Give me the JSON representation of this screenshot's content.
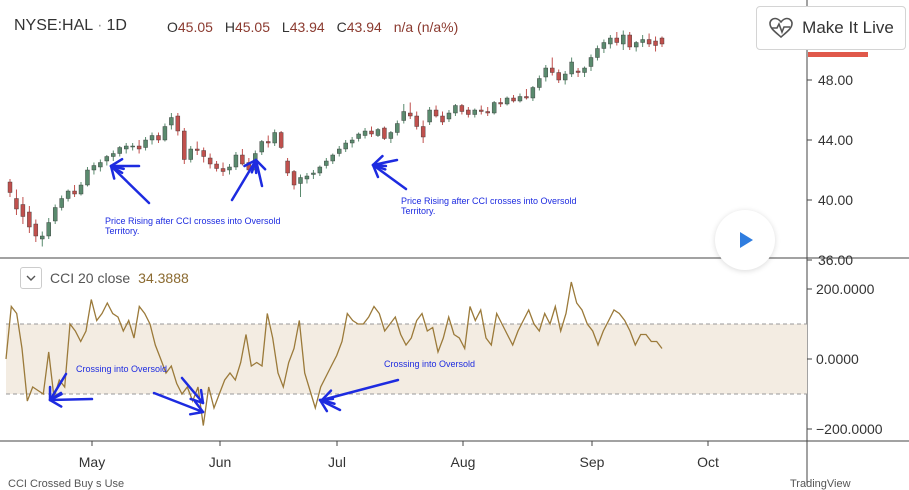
{
  "header": {
    "symbol": "NYSE:HAL",
    "interval": "1D",
    "ohlc": [
      {
        "key": "O",
        "value": "45.05"
      },
      {
        "key": "H",
        "value": "45.05"
      },
      {
        "key": "L",
        "value": "43.94"
      },
      {
        "key": "C",
        "value": "43.94"
      }
    ],
    "change": "n/a (n/a%)"
  },
  "live_button": {
    "label": "Make It Live",
    "icon": "heart-pulse-icon"
  },
  "cci_legend": {
    "label": "CCI 20 close",
    "value": "34.3888"
  },
  "annotations": [
    {
      "text": "Price Rising after CCI crosses into Oversold Territory."
    },
    {
      "text": "Price Rising after CCI crosses into Oversold Territory."
    },
    {
      "text": "Crossing into Oversold"
    },
    {
      "text": "Crossing into Oversold"
    }
  ],
  "footer": {
    "left": "CCI Crossed Buy s Use",
    "right": "TradingView"
  },
  "colors": {
    "up": "#5a8a6e",
    "down": "#c0504d",
    "cci": "#9b7a3a",
    "band": "#f3ece2",
    "arrow": "#1d2be0",
    "accent_price": "#e0584a"
  },
  "chart_data": [
    {
      "type": "candlestick",
      "title": "NYSE:HAL",
      "x_ticks": [
        "May",
        "Jun",
        "Jul",
        "Aug",
        "Sep",
        "Oct"
      ],
      "y_ticks": [
        "36.00",
        "40.00",
        "44.00",
        "48.00"
      ],
      "ylim": [
        35.4,
        52.7
      ],
      "grid": false,
      "candles": [
        {
          "o": 41.2,
          "h": 41.4,
          "l": 40.2,
          "c": 40.5
        },
        {
          "o": 40.1,
          "h": 40.7,
          "l": 39.0,
          "c": 39.4
        },
        {
          "o": 39.7,
          "h": 40.2,
          "l": 38.4,
          "c": 38.9
        },
        {
          "o": 39.2,
          "h": 39.6,
          "l": 37.8,
          "c": 38.2
        },
        {
          "o": 38.4,
          "h": 38.7,
          "l": 37.2,
          "c": 37.6
        },
        {
          "o": 37.4,
          "h": 37.9,
          "l": 36.9,
          "c": 37.6
        },
        {
          "o": 37.6,
          "h": 38.8,
          "l": 37.4,
          "c": 38.5
        },
        {
          "o": 38.6,
          "h": 39.7,
          "l": 38.4,
          "c": 39.5
        },
        {
          "o": 39.5,
          "h": 40.3,
          "l": 39.3,
          "c": 40.1
        },
        {
          "o": 40.1,
          "h": 40.7,
          "l": 39.9,
          "c": 40.6
        },
        {
          "o": 40.6,
          "h": 41.0,
          "l": 40.2,
          "c": 40.4
        },
        {
          "o": 40.4,
          "h": 41.2,
          "l": 40.3,
          "c": 41.0
        },
        {
          "o": 41.0,
          "h": 42.2,
          "l": 40.9,
          "c": 42.0
        },
        {
          "o": 42.0,
          "h": 42.5,
          "l": 41.7,
          "c": 42.3
        },
        {
          "o": 42.2,
          "h": 42.7,
          "l": 41.9,
          "c": 42.5
        },
        {
          "o": 42.6,
          "h": 43.0,
          "l": 42.3,
          "c": 42.9
        },
        {
          "o": 42.9,
          "h": 43.3,
          "l": 42.6,
          "c": 43.1
        },
        {
          "o": 43.1,
          "h": 43.6,
          "l": 42.9,
          "c": 43.5
        },
        {
          "o": 43.4,
          "h": 43.8,
          "l": 43.1,
          "c": 43.6
        },
        {
          "o": 43.6,
          "h": 43.8,
          "l": 43.3,
          "c": 43.6
        },
        {
          "o": 43.6,
          "h": 44.0,
          "l": 43.1,
          "c": 43.4
        },
        {
          "o": 43.5,
          "h": 44.2,
          "l": 43.3,
          "c": 44.0
        },
        {
          "o": 44.0,
          "h": 44.5,
          "l": 43.7,
          "c": 44.3
        },
        {
          "o": 44.3,
          "h": 44.5,
          "l": 43.8,
          "c": 44.0
        },
        {
          "o": 44.0,
          "h": 45.1,
          "l": 43.9,
          "c": 44.9
        },
        {
          "o": 45.0,
          "h": 45.8,
          "l": 44.7,
          "c": 45.5
        },
        {
          "o": 45.6,
          "h": 45.8,
          "l": 44.3,
          "c": 44.6
        },
        {
          "o": 44.6,
          "h": 44.8,
          "l": 42.4,
          "c": 42.7
        },
        {
          "o": 42.7,
          "h": 43.6,
          "l": 42.5,
          "c": 43.4
        },
        {
          "o": 43.4,
          "h": 43.9,
          "l": 43.0,
          "c": 43.3
        },
        {
          "o": 43.3,
          "h": 43.5,
          "l": 42.5,
          "c": 42.9
        },
        {
          "o": 42.8,
          "h": 43.1,
          "l": 42.1,
          "c": 42.4
        },
        {
          "o": 42.4,
          "h": 42.6,
          "l": 41.9,
          "c": 42.1
        },
        {
          "o": 42.1,
          "h": 42.5,
          "l": 41.6,
          "c": 41.9
        },
        {
          "o": 42.0,
          "h": 42.4,
          "l": 41.7,
          "c": 42.2
        },
        {
          "o": 42.2,
          "h": 43.2,
          "l": 42.0,
          "c": 43.0
        },
        {
          "o": 43.0,
          "h": 43.4,
          "l": 42.3,
          "c": 42.4
        },
        {
          "o": 42.5,
          "h": 42.8,
          "l": 41.8,
          "c": 42.0
        },
        {
          "o": 42.0,
          "h": 43.3,
          "l": 41.9,
          "c": 43.1
        },
        {
          "o": 43.2,
          "h": 44.0,
          "l": 43.0,
          "c": 43.9
        },
        {
          "o": 43.9,
          "h": 44.3,
          "l": 43.5,
          "c": 43.8
        },
        {
          "o": 43.8,
          "h": 44.7,
          "l": 43.6,
          "c": 44.5
        },
        {
          "o": 44.5,
          "h": 44.6,
          "l": 43.4,
          "c": 43.5
        },
        {
          "o": 42.6,
          "h": 42.8,
          "l": 41.6,
          "c": 41.8
        },
        {
          "o": 41.9,
          "h": 42.0,
          "l": 40.7,
          "c": 41.0
        },
        {
          "o": 41.1,
          "h": 41.7,
          "l": 40.2,
          "c": 41.5
        },
        {
          "o": 41.4,
          "h": 41.8,
          "l": 41.1,
          "c": 41.6
        },
        {
          "o": 41.7,
          "h": 42.0,
          "l": 41.4,
          "c": 41.8
        },
        {
          "o": 41.8,
          "h": 42.3,
          "l": 41.6,
          "c": 42.2
        },
        {
          "o": 42.3,
          "h": 42.8,
          "l": 42.1,
          "c": 42.6
        },
        {
          "o": 42.6,
          "h": 43.1,
          "l": 42.4,
          "c": 43.0
        },
        {
          "o": 43.1,
          "h": 43.6,
          "l": 42.9,
          "c": 43.4
        },
        {
          "o": 43.4,
          "h": 44.0,
          "l": 43.2,
          "c": 43.8
        },
        {
          "o": 43.8,
          "h": 44.2,
          "l": 43.5,
          "c": 44.0
        },
        {
          "o": 44.1,
          "h": 44.5,
          "l": 43.9,
          "c": 44.4
        },
        {
          "o": 44.3,
          "h": 44.8,
          "l": 44.1,
          "c": 44.6
        },
        {
          "o": 44.6,
          "h": 44.9,
          "l": 44.2,
          "c": 44.4
        },
        {
          "o": 44.3,
          "h": 44.8,
          "l": 44.2,
          "c": 44.7
        },
        {
          "o": 44.8,
          "h": 44.9,
          "l": 44.0,
          "c": 44.1
        },
        {
          "o": 44.1,
          "h": 44.6,
          "l": 43.8,
          "c": 44.5
        },
        {
          "o": 44.5,
          "h": 45.3,
          "l": 44.3,
          "c": 45.1
        },
        {
          "o": 45.3,
          "h": 46.4,
          "l": 45.1,
          "c": 45.9
        },
        {
          "o": 45.8,
          "h": 46.5,
          "l": 45.4,
          "c": 45.6
        },
        {
          "o": 45.6,
          "h": 45.9,
          "l": 44.7,
          "c": 44.9
        },
        {
          "o": 44.9,
          "h": 45.3,
          "l": 43.8,
          "c": 44.2
        },
        {
          "o": 45.2,
          "h": 46.2,
          "l": 45.0,
          "c": 46.0
        },
        {
          "o": 46.0,
          "h": 46.3,
          "l": 45.5,
          "c": 45.6
        },
        {
          "o": 45.6,
          "h": 45.9,
          "l": 45.0,
          "c": 45.2
        },
        {
          "o": 45.4,
          "h": 46.0,
          "l": 45.2,
          "c": 45.8
        },
        {
          "o": 45.8,
          "h": 46.4,
          "l": 45.6,
          "c": 46.3
        },
        {
          "o": 46.3,
          "h": 46.4,
          "l": 45.7,
          "c": 45.9
        },
        {
          "o": 46.0,
          "h": 46.2,
          "l": 45.5,
          "c": 45.7
        },
        {
          "o": 45.7,
          "h": 46.1,
          "l": 45.5,
          "c": 46.0
        },
        {
          "o": 46.0,
          "h": 46.3,
          "l": 45.7,
          "c": 45.9
        },
        {
          "o": 45.9,
          "h": 46.2,
          "l": 45.6,
          "c": 45.8
        },
        {
          "o": 45.8,
          "h": 46.6,
          "l": 45.7,
          "c": 46.5
        },
        {
          "o": 46.5,
          "h": 46.8,
          "l": 46.2,
          "c": 46.4
        },
        {
          "o": 46.4,
          "h": 46.9,
          "l": 46.3,
          "c": 46.8
        },
        {
          "o": 46.8,
          "h": 47.0,
          "l": 46.5,
          "c": 46.6
        },
        {
          "o": 46.6,
          "h": 47.1,
          "l": 46.5,
          "c": 46.9
        },
        {
          "o": 46.9,
          "h": 47.4,
          "l": 46.7,
          "c": 46.8
        },
        {
          "o": 46.8,
          "h": 47.6,
          "l": 46.6,
          "c": 47.5
        },
        {
          "o": 47.5,
          "h": 48.3,
          "l": 47.3,
          "c": 48.1
        },
        {
          "o": 48.2,
          "h": 49.0,
          "l": 47.9,
          "c": 48.8
        },
        {
          "o": 48.8,
          "h": 49.5,
          "l": 48.3,
          "c": 48.5
        },
        {
          "o": 48.5,
          "h": 48.7,
          "l": 47.8,
          "c": 48.0
        },
        {
          "o": 48.0,
          "h": 48.6,
          "l": 47.7,
          "c": 48.4
        },
        {
          "o": 48.4,
          "h": 49.5,
          "l": 48.2,
          "c": 49.2
        },
        {
          "o": 48.6,
          "h": 48.8,
          "l": 48.2,
          "c": 48.5
        },
        {
          "o": 48.5,
          "h": 48.9,
          "l": 48.2,
          "c": 48.8
        },
        {
          "o": 48.9,
          "h": 49.7,
          "l": 48.6,
          "c": 49.5
        },
        {
          "o": 49.5,
          "h": 50.3,
          "l": 49.3,
          "c": 50.1
        },
        {
          "o": 50.1,
          "h": 50.7,
          "l": 49.8,
          "c": 50.5
        },
        {
          "o": 50.4,
          "h": 51.0,
          "l": 50.1,
          "c": 50.8
        },
        {
          "o": 50.8,
          "h": 51.2,
          "l": 50.3,
          "c": 50.5
        },
        {
          "o": 50.4,
          "h": 51.3,
          "l": 50.0,
          "c": 51.0
        },
        {
          "o": 51.0,
          "h": 51.2,
          "l": 50.0,
          "c": 50.2
        },
        {
          "o": 50.2,
          "h": 50.6,
          "l": 49.9,
          "c": 50.5
        },
        {
          "o": 50.5,
          "h": 51.0,
          "l": 50.2,
          "c": 50.7
        },
        {
          "o": 50.7,
          "h": 51.1,
          "l": 50.2,
          "c": 50.4
        },
        {
          "o": 50.6,
          "h": 50.9,
          "l": 49.9,
          "c": 50.3
        },
        {
          "o": 50.8,
          "h": 50.9,
          "l": 50.2,
          "c": 50.4
        }
      ]
    },
    {
      "type": "line",
      "title": "CCI 20 close",
      "series": [
        {
          "name": "CCI 20 close",
          "values": [
            0,
            150,
            130,
            30,
            -120,
            -80,
            -90,
            -100,
            20,
            -110,
            -60,
            -80,
            100,
            80,
            50,
            80,
            170,
            110,
            130,
            160,
            130,
            120,
            80,
            110,
            60,
            150,
            130,
            100,
            40,
            0,
            -40,
            -20,
            -70,
            -100,
            -80,
            -120,
            -80,
            -190,
            -80,
            -140,
            -100,
            -60,
            -40,
            -60,
            -10,
            70,
            -20,
            -10,
            -20,
            130,
            60,
            -40,
            -80,
            -10,
            30,
            110,
            -40,
            -90,
            -140,
            -80,
            -50,
            -20,
            10,
            50,
            130,
            110,
            100,
            100,
            120,
            150,
            130,
            80,
            100,
            120,
            70,
            40,
            60,
            110,
            130,
            80,
            90,
            20,
            60,
            120,
            70,
            60,
            30,
            150,
            110,
            140,
            60,
            40,
            130,
            100,
            70,
            40,
            80,
            110,
            140,
            100,
            80,
            130,
            100,
            150,
            80,
            130,
            220,
            160,
            140,
            100,
            80,
            40,
            80,
            110,
            140,
            130,
            110,
            80,
            40,
            70,
            70,
            50,
            50,
            30
          ]
        }
      ],
      "x_ticks": [
        "May",
        "Jun",
        "Jul",
        "Aug",
        "Sep",
        "Oct"
      ],
      "y_ticks": [
        "200.0000",
        "0.0000",
        "−200.0000"
      ],
      "ylim": [
        -235,
        265
      ],
      "bands": [
        100,
        -100
      ],
      "grid": false
    }
  ]
}
